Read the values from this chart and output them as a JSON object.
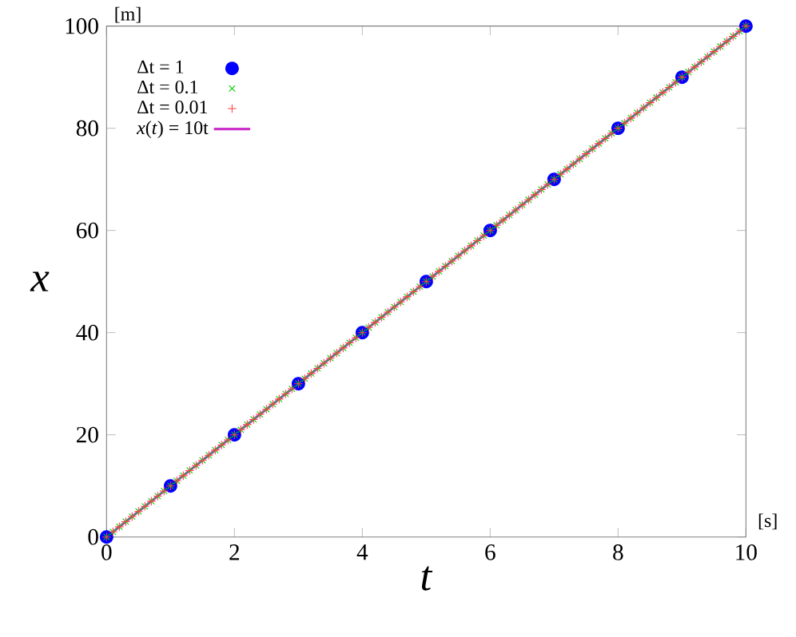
{
  "chart_data": {
    "type": "scatter",
    "xlabel": "*t*",
    "ylabel": "*x*",
    "annotations": [
      "[m]",
      "[s]"
    ],
    "xlim": [
      0,
      10
    ],
    "xticks": [
      0,
      2,
      4,
      6,
      8,
      10
    ],
    "ylim": [
      0,
      100
    ],
    "yticks": [
      0,
      20,
      40,
      60,
      80,
      100
    ],
    "legend": "top left",
    "grid": false,
    "series": [
      {
        "name": "Δt = 1",
        "marker": "circle",
        "color": "#0000ff",
        "x": [
          0,
          1,
          2,
          3,
          4,
          5,
          6,
          7,
          8,
          9,
          10
        ],
        "values": [
          0,
          10,
          20,
          30,
          40,
          50,
          60,
          70,
          80,
          90,
          100
        ]
      },
      {
        "name": "Δt = 0.1",
        "marker": "cross",
        "color": "#00cc00",
        "x": [
          0,
          0.1,
          0.2,
          0.3,
          0.4,
          0.5,
          0.6,
          0.7,
          0.8,
          0.9,
          1,
          1.1,
          1.2,
          1.3,
          1.4,
          1.5,
          1.6,
          1.7,
          1.8,
          1.9,
          2,
          2.1,
          2.2,
          2.3,
          2.4,
          2.5,
          2.6,
          2.7,
          2.8,
          2.9,
          3,
          3.1,
          3.2,
          3.3,
          3.4,
          3.5,
          3.6,
          3.7,
          3.8,
          3.9,
          4,
          4.1,
          4.2,
          4.3,
          4.4,
          4.5,
          4.6,
          4.7,
          4.8,
          4.9,
          5,
          5.1,
          5.2,
          5.3,
          5.4,
          5.5,
          5.6,
          5.7,
          5.8,
          5.9,
          6,
          6.1,
          6.2,
          6.3,
          6.4,
          6.5,
          6.6,
          6.7,
          6.8,
          6.9,
          7,
          7.1,
          7.2,
          7.3,
          7.4,
          7.5,
          7.6,
          7.7,
          7.8,
          7.9,
          8,
          8.1,
          8.2,
          8.3,
          8.4,
          8.5,
          8.6,
          8.7,
          8.8,
          8.9,
          9,
          9.1,
          9.2,
          9.3,
          9.4,
          9.5,
          9.6,
          9.7,
          9.8,
          9.9,
          10
        ],
        "values": [
          0,
          1,
          2,
          3,
          4,
          5,
          6,
          7,
          8,
          9,
          10,
          11,
          12,
          13,
          14,
          15,
          16,
          17,
          18,
          19,
          20,
          21,
          22,
          23,
          24,
          25,
          26,
          27,
          28,
          29,
          30,
          31,
          32,
          33,
          34,
          35,
          36,
          37,
          38,
          39,
          40,
          41,
          42,
          43,
          44,
          45,
          46,
          47,
          48,
          49,
          50,
          51,
          52,
          53,
          54,
          55,
          56,
          57,
          58,
          59,
          60,
          61,
          62,
          63,
          64,
          65,
          66,
          67,
          68,
          69,
          70,
          71,
          72,
          73,
          74,
          75,
          76,
          77,
          78,
          79,
          80,
          81,
          82,
          83,
          84,
          85,
          86,
          87,
          88,
          89,
          90,
          91,
          92,
          93,
          94,
          95,
          96,
          97,
          98,
          99,
          100
        ]
      },
      {
        "name": "Δt = 0.01",
        "marker": "plus",
        "color": "#ff4040",
        "x": [
          0,
          0.1,
          0.2,
          0.3,
          0.4,
          0.5,
          0.6,
          0.7,
          0.8,
          0.9,
          1,
          1.1,
          1.2,
          1.3,
          1.4,
          1.5,
          1.6,
          1.7,
          1.8,
          1.9,
          2,
          2.1,
          2.2,
          2.3,
          2.4,
          2.5,
          2.6,
          2.7,
          2.8,
          2.9,
          3,
          3.1,
          3.2,
          3.3,
          3.4,
          3.5,
          3.6,
          3.7,
          3.8,
          3.9,
          4,
          4.1,
          4.2,
          4.3,
          4.4,
          4.5,
          4.6,
          4.7,
          4.8,
          4.9,
          5,
          5.1,
          5.2,
          5.3,
          5.4,
          5.5,
          5.6,
          5.7,
          5.8,
          5.9,
          6,
          6.1,
          6.2,
          6.3,
          6.4,
          6.5,
          6.6,
          6.7,
          6.8,
          6.9,
          7,
          7.1,
          7.2,
          7.3,
          7.4,
          7.5,
          7.6,
          7.7,
          7.8,
          7.9,
          8,
          8.1,
          8.2,
          8.3,
          8.4,
          8.5,
          8.6,
          8.7,
          8.8,
          8.9,
          9,
          9.1,
          9.2,
          9.3,
          9.4,
          9.5,
          9.6,
          9.7,
          9.8,
          9.9,
          10
        ],
        "values": [
          0,
          1,
          2,
          3,
          4,
          5,
          6,
          7,
          8,
          9,
          10,
          11,
          12,
          13,
          14,
          15,
          16,
          17,
          18,
          19,
          20,
          21,
          22,
          23,
          24,
          25,
          26,
          27,
          28,
          29,
          30,
          31,
          32,
          33,
          34,
          35,
          36,
          37,
          38,
          39,
          40,
          41,
          42,
          43,
          44,
          45,
          46,
          47,
          48,
          49,
          50,
          51,
          52,
          53,
          54,
          55,
          56,
          57,
          58,
          59,
          60,
          61,
          62,
          63,
          64,
          65,
          66,
          67,
          68,
          69,
          70,
          71,
          72,
          73,
          74,
          75,
          76,
          77,
          78,
          79,
          80,
          81,
          82,
          83,
          84,
          85,
          86,
          87,
          88,
          89,
          90,
          91,
          92,
          93,
          94,
          95,
          96,
          97,
          98,
          99,
          100
        ]
      },
      {
        "name": "*x*(*t*) = 10t",
        "type": "line",
        "marker": "none",
        "line_style": "solid",
        "color": "#cc33cc",
        "x": [
          0,
          10
        ],
        "values": [
          0,
          100
        ]
      }
    ]
  }
}
